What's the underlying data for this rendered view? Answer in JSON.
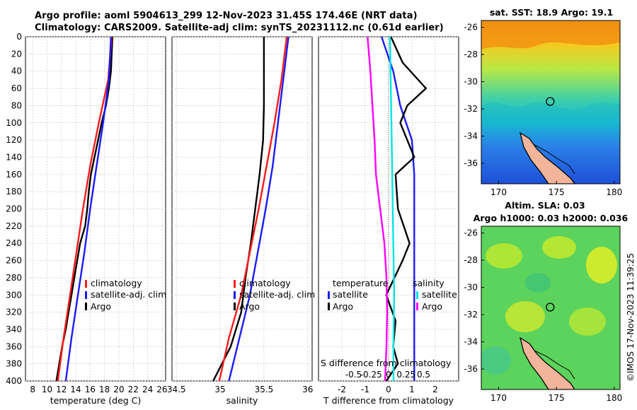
{
  "header": {
    "line1": "Argo profile: aoml 5904613_299 12-Nov-2023 31.45S 174.46E (NRT data)",
    "line2": "Climatology: CARS2009. Satellite-adj clim: synTS_20231112.nc (0.61d earlier)"
  },
  "colors": {
    "argo": "#000000",
    "climatology": "#ff1a1a",
    "satellite": "#1a1aff",
    "salinity_satellite": "#00e5e5",
    "salinity_argo": "#ff00ff"
  },
  "shared_y": {
    "range": [
      0,
      400
    ],
    "ticks": [
      "0",
      "20",
      "40",
      "60",
      "80",
      "100",
      "120",
      "140",
      "160",
      "180",
      "200",
      "220",
      "240",
      "260",
      "280",
      "300",
      "320",
      "340",
      "360",
      "380",
      "400"
    ]
  },
  "sst_map": {
    "title": "sat. SST: 18.9 Argo: 19.1",
    "xticks": [
      "170",
      "175",
      "180"
    ],
    "yticks": [
      "-26",
      "-28",
      "-30",
      "-32",
      "-34",
      "-36"
    ],
    "xlim": [
      168.5,
      180.5
    ],
    "ylim": [
      -37.5,
      -25.5
    ],
    "marker": [
      174.46,
      -31.45
    ]
  },
  "sla_map": {
    "title1": "Altim. SLA: 0.03",
    "title2": "Argo h1000: 0.03 h2000: 0.036",
    "xticks": [
      "170",
      "175",
      "180"
    ],
    "yticks": [
      "-26",
      "-28",
      "-30",
      "-32",
      "-34",
      "-36"
    ],
    "xlim": [
      168.5,
      180.5
    ],
    "ylim": [
      -37.5,
      -25.5
    ],
    "marker": [
      174.46,
      -31.45
    ]
  },
  "stamp": "©IMOS 17-Nov-2023 11:39:25",
  "chart_data": [
    {
      "type": "line",
      "id": "temperature",
      "xlabel": "temperature (deg C)",
      "ylabel": "",
      "xlim": [
        7,
        26.5
      ],
      "ylim": [
        400,
        0
      ],
      "xticks": [
        "8",
        "10",
        "12",
        "14",
        "16",
        "18",
        "20",
        "22",
        "24",
        "26"
      ],
      "legend": [
        "climatology",
        "satellite-adj. clim",
        "Argo"
      ],
      "series": [
        {
          "name": "Argo",
          "color": "#000000",
          "depth": [
            0,
            20,
            40,
            60,
            80,
            100,
            120,
            140,
            160,
            180,
            200,
            220,
            240,
            260,
            280,
            300,
            320,
            340,
            360,
            380,
            400
          ],
          "values": [
            19.1,
            19.0,
            18.9,
            18.6,
            18.2,
            17.6,
            17.1,
            16.6,
            16.1,
            15.8,
            15.6,
            15.3,
            14.6,
            14.2,
            13.8,
            13.4,
            13.0,
            12.6,
            12.1,
            11.7,
            11.3
          ]
        },
        {
          "name": "climatology",
          "color": "#ff1a1a",
          "depth": [
            0,
            50,
            100,
            150,
            200,
            250,
            300,
            350,
            400
          ],
          "values": [
            19.0,
            18.5,
            17.2,
            16.0,
            15.0,
            14.1,
            13.2,
            12.3,
            11.5
          ]
        },
        {
          "name": "satellite-adj. clim",
          "color": "#1a1aff",
          "depth": [
            0,
            50,
            100,
            150,
            200,
            250,
            300,
            350,
            400
          ],
          "values": [
            18.9,
            18.6,
            17.8,
            16.9,
            16.0,
            15.2,
            14.3,
            13.4,
            12.6
          ]
        }
      ]
    },
    {
      "type": "line",
      "id": "salinity",
      "xlabel": "salinity",
      "ylabel": "",
      "xlim": [
        34.45,
        36.05
      ],
      "ylim": [
        400,
        0
      ],
      "xticks": [
        "34.5",
        "35",
        "35.5",
        "36"
      ],
      "legend": [
        "climatology",
        "satellite-adj. clim",
        "Argo"
      ],
      "series": [
        {
          "name": "Argo",
          "color": "#000000",
          "depth": [
            0,
            40,
            80,
            120,
            160,
            200,
            240,
            280,
            320,
            360,
            400
          ],
          "values": [
            35.5,
            35.5,
            35.5,
            35.49,
            35.45,
            35.4,
            35.35,
            35.29,
            35.24,
            35.12,
            34.92
          ]
        },
        {
          "name": "climatology",
          "color": "#ff1a1a",
          "depth": [
            0,
            50,
            100,
            150,
            200,
            250,
            300,
            350,
            400
          ],
          "values": [
            35.76,
            35.7,
            35.62,
            35.53,
            35.44,
            35.34,
            35.24,
            35.1,
            34.99
          ]
        },
        {
          "name": "satellite-adj. clim",
          "color": "#1a1aff",
          "depth": [
            0,
            50,
            100,
            150,
            200,
            250,
            300,
            350,
            400
          ],
          "values": [
            35.78,
            35.72,
            35.66,
            35.6,
            35.52,
            35.43,
            35.34,
            35.22,
            35.1
          ]
        }
      ]
    },
    {
      "type": "line",
      "id": "difference",
      "xlabel": "T difference from climatology",
      "top_xlabel": "S difference from climatology",
      "xlim": [
        -3,
        3
      ],
      "ylim": [
        400,
        0
      ],
      "xticks": [
        "-2",
        "-1",
        "0",
        "1",
        "2"
      ],
      "top_xticks": [
        "-0.5",
        "-0.25",
        "0",
        "0.25",
        "0.5"
      ],
      "legend_temperature_title": "temperature",
      "legend_salinity_title": "salinity",
      "legend_temperature": [
        "satellite",
        "Argo"
      ],
      "legend_salinity": [
        "satellite",
        "Argo"
      ],
      "series": [
        {
          "name": "temperature satellite",
          "color": "#1a1aff",
          "depth": [
            0,
            40,
            80,
            120,
            160,
            200,
            240,
            280,
            320,
            360,
            400
          ],
          "values": [
            -0.3,
            0.2,
            0.5,
            1.0,
            1.1,
            1.1,
            1.1,
            1.1,
            1.1,
            1.1,
            1.1
          ]
        },
        {
          "name": "temperature Argo",
          "color": "#000000",
          "depth": [
            0,
            30,
            60,
            80,
            100,
            140,
            160,
            200,
            240,
            260,
            300,
            330,
            360,
            380,
            400
          ],
          "values": [
            0.1,
            0.6,
            1.6,
            0.8,
            0.5,
            1.1,
            0.3,
            0.4,
            0.9,
            0.6,
            -0.1,
            0.3,
            0.2,
            0.4,
            -0.1
          ]
        },
        {
          "name": "salinity satellite",
          "color": "#00e5e5",
          "depth": [
            0,
            50,
            100,
            150,
            200,
            250,
            300,
            350,
            400
          ],
          "values": [
            0.02,
            0.03,
            0.04,
            0.05,
            0.06,
            0.07,
            0.08,
            0.07,
            0.07
          ]
        },
        {
          "name": "salinity Argo",
          "color": "#ff00ff",
          "depth": [
            0,
            40,
            80,
            120,
            160,
            200,
            240,
            280,
            320,
            360,
            400
          ],
          "values": [
            -0.3,
            -0.26,
            -0.23,
            -0.2,
            -0.18,
            -0.12,
            -0.06,
            -0.03,
            -0.02,
            -0.03,
            -0.05
          ]
        }
      ]
    }
  ]
}
